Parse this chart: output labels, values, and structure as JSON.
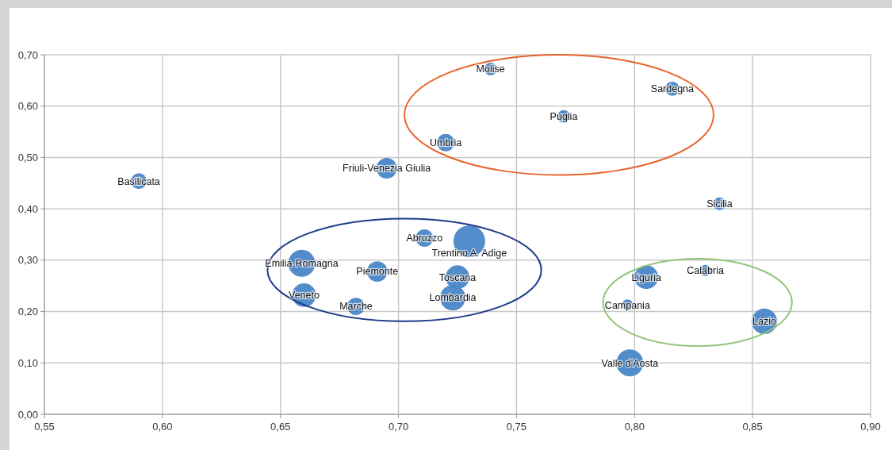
{
  "chart_data": {
    "type": "bubble",
    "x": [
      0.59,
      0.739,
      0.816,
      0.77,
      0.72,
      0.695,
      0.836,
      0.711,
      0.73,
      0.659,
      0.691,
      0.725,
      0.83,
      0.805,
      0.66,
      0.723,
      0.682,
      0.797,
      0.855,
      0.798
    ],
    "series": [
      {
        "color": "#4a86c8",
        "values": [
          0.454,
          0.672,
          0.634,
          0.58,
          0.529,
          0.479,
          0.41,
          0.343,
          0.337,
          0.294,
          0.278,
          0.267,
          0.28,
          0.267,
          0.232,
          0.227,
          0.21,
          0.213,
          0.181,
          0.1
        ],
        "sizes": [
          0.25,
          0.16,
          0.2,
          0.16,
          0.3,
          0.42,
          0.16,
          0.3,
          1,
          0.72,
          0.42,
          0.56,
          0.12,
          0.56,
          0.56,
          0.64,
          0.3,
          0.12,
          0.64,
          0.72
        ]
      }
    ],
    "annotations": [
      {
        "text": "Basilicata",
        "x": 0.59,
        "y": 0.454
      },
      {
        "text": "Molise",
        "x": 0.739,
        "y": 0.672
      },
      {
        "text": "Sardegna",
        "x": 0.816,
        "y": 0.634
      },
      {
        "text": "Puglia",
        "x": 0.77,
        "y": 0.58
      },
      {
        "text": "Umbria",
        "x": 0.72,
        "y": 0.529
      },
      {
        "text": "Friuli-Venezia Giulia",
        "x": 0.695,
        "y": 0.479
      },
      {
        "text": "Sicilia",
        "x": 0.836,
        "y": 0.41
      },
      {
        "text": "Abruzzo",
        "x": 0.711,
        "y": 0.343
      },
      {
        "text": "Trentino A. Adige",
        "x": 0.73,
        "y": 0.337
      },
      {
        "text": "Emilia-Romagna",
        "x": 0.659,
        "y": 0.294
      },
      {
        "text": "Piemonte",
        "x": 0.691,
        "y": 0.278
      },
      {
        "text": "Toscana",
        "x": 0.725,
        "y": 0.267
      },
      {
        "text": "Calabria",
        "x": 0.83,
        "y": 0.28
      },
      {
        "text": "Liguria",
        "x": 0.805,
        "y": 0.267
      },
      {
        "text": "Veneto",
        "x": 0.66,
        "y": 0.232
      },
      {
        "text": "Lombardia",
        "x": 0.723,
        "y": 0.227
      },
      {
        "text": "Marche",
        "x": 0.682,
        "y": 0.21
      },
      {
        "text": "Campania",
        "x": 0.797,
        "y": 0.213
      },
      {
        "text": "Lazio",
        "x": 0.855,
        "y": 0.181
      },
      {
        "text": "Valle d'Aosta",
        "x": 0.798,
        "y": 0.1
      }
    ],
    "xlim": [
      0.55,
      0.9
    ],
    "xticks": [
      {
        "value": 0.55,
        "label": "0,55"
      },
      {
        "value": 0.6,
        "label": "0,60"
      },
      {
        "value": 0.65,
        "label": "0,65"
      },
      {
        "value": 0.7,
        "label": "0,70"
      },
      {
        "value": 0.75,
        "label": "0,75"
      },
      {
        "value": 0.8,
        "label": "0,80"
      },
      {
        "value": 0.85,
        "label": "0,85"
      },
      {
        "value": 0.9,
        "label": "0,90"
      }
    ],
    "ylim": [
      0,
      0.7
    ],
    "yticks": [
      {
        "value": 0,
        "label": "0,00"
      },
      {
        "value": 0.1,
        "label": "0,10"
      },
      {
        "value": 0.2,
        "label": "0,20"
      },
      {
        "value": 0.3,
        "label": "0,30"
      },
      {
        "value": 0.4,
        "label": "0,40"
      },
      {
        "value": 0.5,
        "label": "0,50"
      },
      {
        "value": 0.6,
        "label": "0,60"
      },
      {
        "value": 0.7,
        "label": "0,70"
      }
    ],
    "grid": true
  }
}
